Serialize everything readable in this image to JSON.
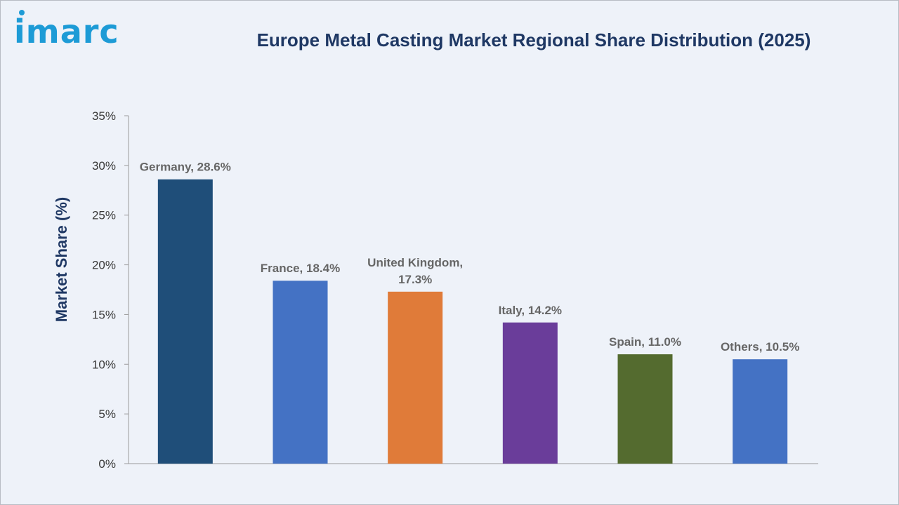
{
  "brand": {
    "logo_text": "imarc",
    "color": "#1d9bd6"
  },
  "chart_data": {
    "type": "bar",
    "title": "Europe Metal Casting Market Regional Share Distribution (2025)",
    "xlabel": "",
    "ylabel": "Market Share (%)",
    "ylim": [
      0,
      35
    ],
    "yticks": [
      "0%",
      "5%",
      "10%",
      "15%",
      "20%",
      "25%",
      "30%",
      "35%"
    ],
    "grid": false,
    "categories": [
      "Germany",
      "France",
      "United Kingdom",
      "Italy",
      "Spain",
      "Others"
    ],
    "values": [
      28.6,
      18.4,
      17.3,
      14.2,
      11.0,
      10.5
    ],
    "data_labels": [
      [
        "Germany, 28.6%"
      ],
      [
        "France, 18.4%"
      ],
      [
        "United Kingdom,",
        "17.3%"
      ],
      [
        "Italy, 14.2%"
      ],
      [
        "Spain, 11.0%"
      ],
      [
        "Others, 10.5%"
      ]
    ],
    "colors": [
      "#1f4e79",
      "#4472c4",
      "#e07b39",
      "#6a3d9a",
      "#546b2f",
      "#4472c4"
    ]
  }
}
